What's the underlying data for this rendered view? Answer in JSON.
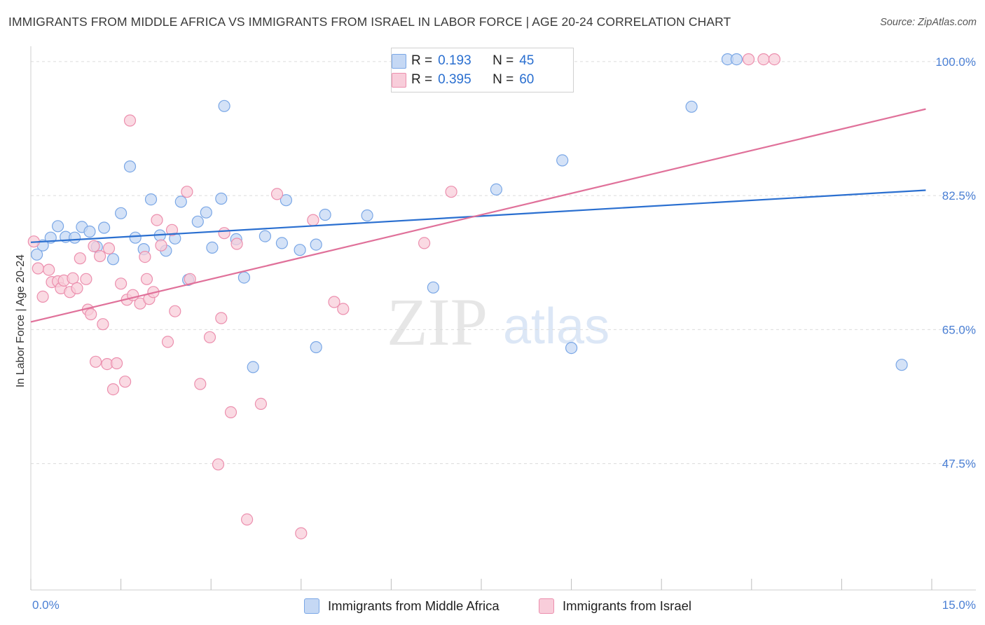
{
  "title": "IMMIGRANTS FROM MIDDLE AFRICA VS IMMIGRANTS FROM ISRAEL IN LABOR FORCE | AGE 20-24 CORRELATION CHART",
  "source": "Source: ZipAtlas.com",
  "watermark": {
    "zip": "ZIP",
    "atlas": "atlas"
  },
  "legend": {
    "rows": [
      {
        "r_label": "R =",
        "r_value": "0.193",
        "n_label": "N =",
        "n_value": "45",
        "color": "#7aa7e6",
        "fill": "#c5d8f4"
      },
      {
        "r_label": "R =",
        "r_value": "0.395",
        "n_label": "N =",
        "n_value": "60",
        "color": "#ec8fae",
        "fill": "#f8cdda"
      }
    ]
  },
  "chart_data": {
    "type": "scatter",
    "ylabel": "In Labor Force | Age 20-24",
    "x_tick_labels": [
      "0.0%",
      "15.0%"
    ],
    "y_tick_labels": [
      "100.0%",
      "82.5%",
      "65.0%",
      "47.5%"
    ],
    "y_ticks": [
      100.0,
      82.5,
      65.0,
      47.5
    ],
    "xlim": [
      0,
      15
    ],
    "ylim": [
      31,
      102
    ],
    "grid": true,
    "series": [
      {
        "name": "Immigrants from Middle Africa",
        "color": "#2a6fd0",
        "marker_fill": "#c5d8f4",
        "marker_edge": "#7aa7e6",
        "trend": [
          [
            0,
            76.4
          ],
          [
            14.9,
            83.2
          ]
        ],
        "points": [
          [
            0.1,
            74.8
          ],
          [
            0.2,
            76.0
          ],
          [
            0.33,
            77.0
          ],
          [
            0.45,
            78.5
          ],
          [
            0.58,
            77.1
          ],
          [
            0.73,
            77.0
          ],
          [
            0.85,
            78.4
          ],
          [
            0.98,
            77.8
          ],
          [
            1.1,
            75.8
          ],
          [
            1.22,
            78.3
          ],
          [
            1.37,
            74.2
          ],
          [
            1.5,
            80.2
          ],
          [
            1.65,
            86.3
          ],
          [
            1.74,
            77.0
          ],
          [
            1.88,
            75.5
          ],
          [
            2.0,
            82.0
          ],
          [
            2.15,
            77.3
          ],
          [
            2.25,
            75.3
          ],
          [
            2.4,
            76.9
          ],
          [
            2.5,
            81.7
          ],
          [
            2.62,
            71.5
          ],
          [
            2.78,
            79.1
          ],
          [
            2.92,
            80.3
          ],
          [
            3.02,
            75.7
          ],
          [
            3.17,
            82.1
          ],
          [
            3.22,
            94.2
          ],
          [
            3.42,
            76.8
          ],
          [
            3.55,
            71.8
          ],
          [
            3.7,
            60.1
          ],
          [
            3.9,
            77.2
          ],
          [
            4.18,
            76.3
          ],
          [
            4.25,
            81.9
          ],
          [
            4.48,
            75.4
          ],
          [
            4.75,
            76.1
          ],
          [
            4.75,
            62.7
          ],
          [
            4.9,
            80.0
          ],
          [
            5.6,
            79.9
          ],
          [
            6.7,
            70.5
          ],
          [
            7.75,
            83.3
          ],
          [
            8.85,
            87.1
          ],
          [
            9.0,
            62.6
          ],
          [
            11.0,
            94.1
          ],
          [
            11.6,
            100.3
          ],
          [
            11.75,
            100.3
          ],
          [
            14.5,
            60.4
          ]
        ]
      },
      {
        "name": "Immigrants from Israel",
        "color": "#e0719a",
        "marker_fill": "#f8cdda",
        "marker_edge": "#ec8fae",
        "trend": [
          [
            0,
            66.0
          ],
          [
            14.9,
            93.8
          ]
        ],
        "points": [
          [
            0.05,
            76.5
          ],
          [
            0.12,
            73.0
          ],
          [
            0.2,
            69.3
          ],
          [
            0.3,
            72.8
          ],
          [
            0.35,
            71.2
          ],
          [
            0.45,
            71.3
          ],
          [
            0.5,
            70.4
          ],
          [
            0.55,
            71.4
          ],
          [
            0.65,
            69.9
          ],
          [
            0.7,
            71.7
          ],
          [
            0.77,
            70.4
          ],
          [
            0.82,
            74.3
          ],
          [
            0.92,
            71.6
          ],
          [
            0.95,
            67.6
          ],
          [
            1.0,
            67.0
          ],
          [
            1.05,
            75.9
          ],
          [
            1.08,
            60.8
          ],
          [
            1.15,
            74.6
          ],
          [
            1.2,
            65.7
          ],
          [
            1.27,
            60.5
          ],
          [
            1.3,
            75.6
          ],
          [
            1.37,
            57.2
          ],
          [
            1.43,
            60.6
          ],
          [
            1.5,
            71.0
          ],
          [
            1.57,
            58.2
          ],
          [
            1.6,
            68.9
          ],
          [
            1.65,
            92.3
          ],
          [
            1.7,
            69.5
          ],
          [
            1.82,
            68.4
          ],
          [
            1.9,
            74.5
          ],
          [
            1.93,
            71.6
          ],
          [
            1.97,
            69.0
          ],
          [
            2.04,
            69.9
          ],
          [
            2.1,
            79.3
          ],
          [
            2.17,
            76.0
          ],
          [
            2.28,
            63.4
          ],
          [
            2.35,
            78.0
          ],
          [
            2.4,
            67.4
          ],
          [
            2.6,
            83.0
          ],
          [
            2.65,
            71.6
          ],
          [
            2.82,
            57.9
          ],
          [
            2.98,
            64.0
          ],
          [
            3.12,
            47.4
          ],
          [
            3.17,
            66.5
          ],
          [
            3.22,
            77.6
          ],
          [
            3.33,
            54.2
          ],
          [
            3.43,
            76.2
          ],
          [
            3.6,
            40.2
          ],
          [
            3.83,
            55.3
          ],
          [
            4.1,
            82.7
          ],
          [
            4.5,
            38.4
          ],
          [
            4.7,
            79.3
          ],
          [
            5.05,
            68.6
          ],
          [
            5.2,
            67.7
          ],
          [
            6.55,
            76.3
          ],
          [
            7.0,
            83.0
          ],
          [
            8.5,
            100.2
          ],
          [
            11.95,
            100.3
          ],
          [
            12.2,
            100.3
          ],
          [
            12.38,
            100.3
          ]
        ]
      }
    ]
  },
  "bottom_legend": [
    "Immigrants from Middle Africa",
    "Immigrants from Israel"
  ]
}
